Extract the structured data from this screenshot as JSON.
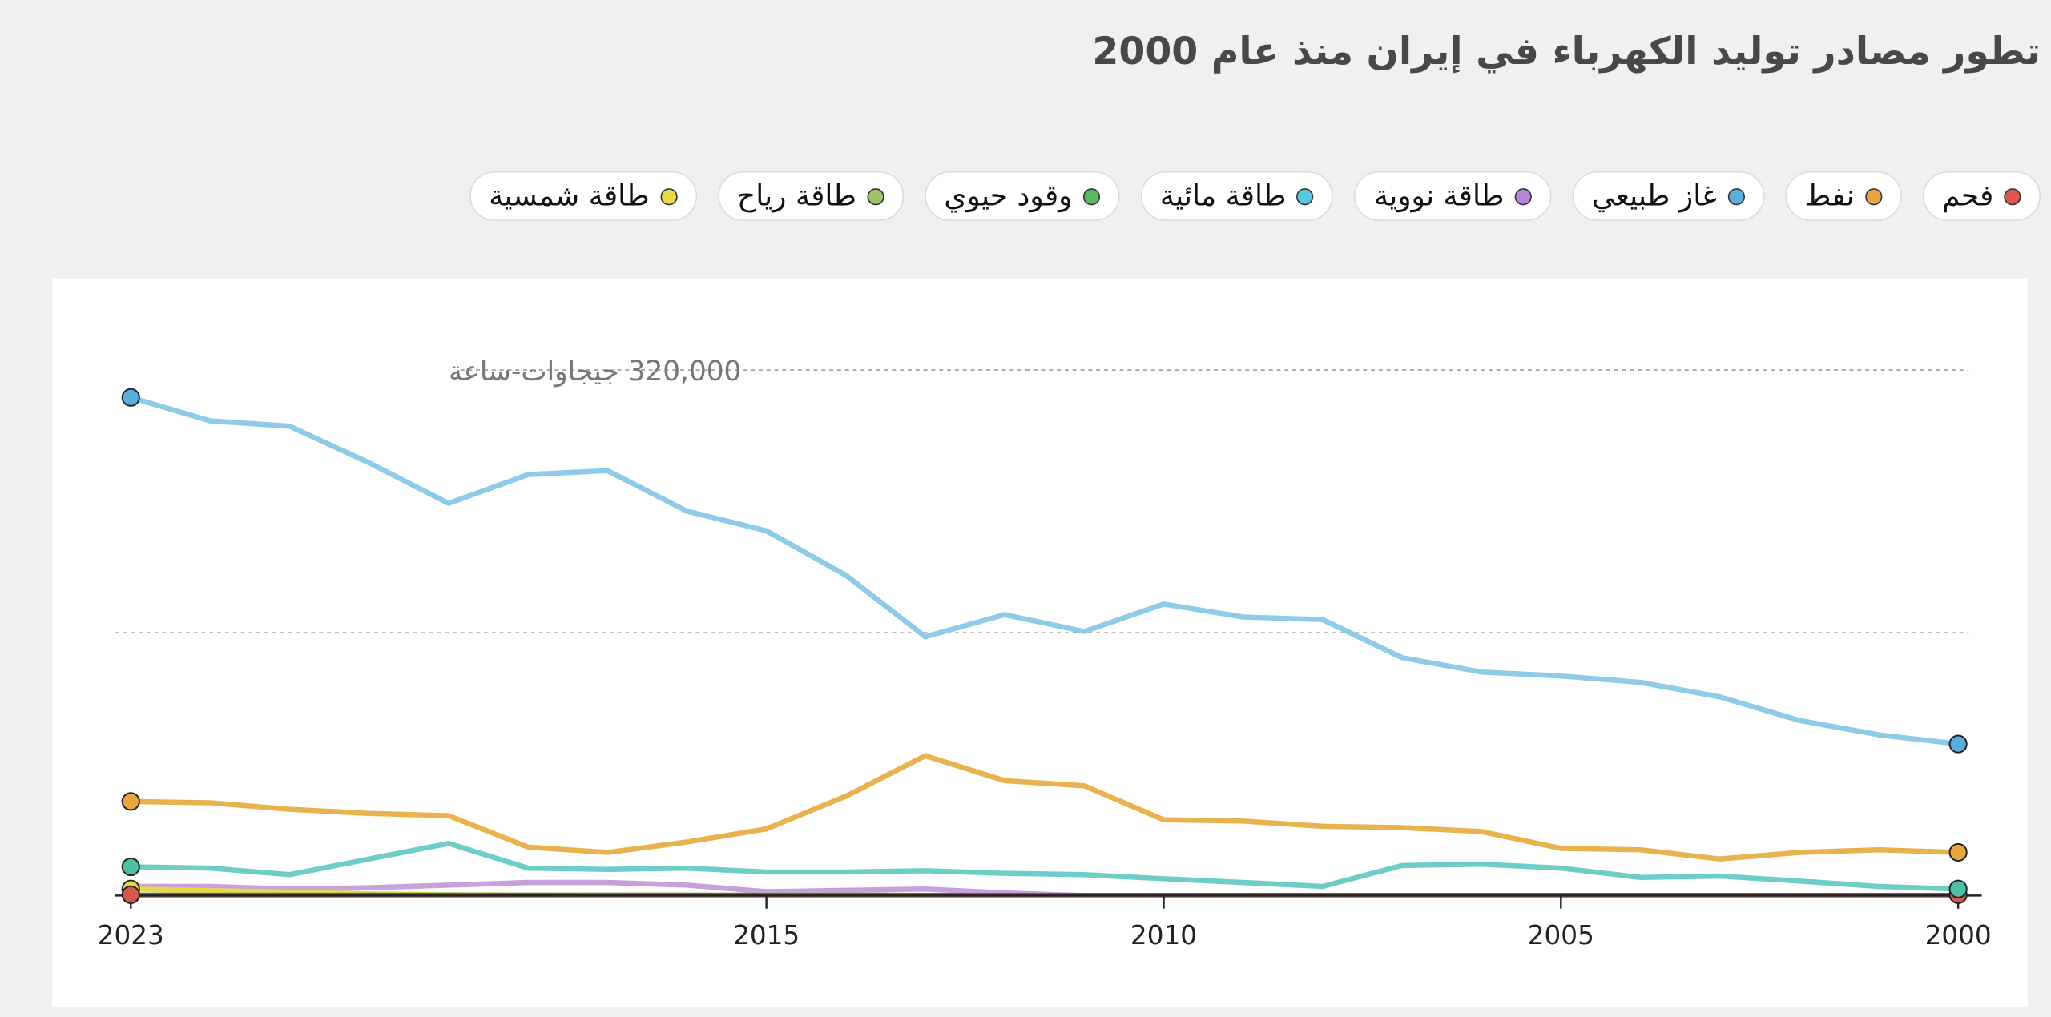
{
  "chart_data": {
    "type": "line",
    "title": "تطور مصادر توليد الكهرباء في إيران منذ عام 2000",
    "x": [
      2023,
      2022,
      2021,
      2020,
      2019,
      2018,
      2017,
      2016,
      2015,
      2014,
      2013,
      2012,
      2011,
      2010,
      2009,
      2008,
      2007,
      2006,
      2005,
      2004,
      2003,
      2002,
      2001,
      2000
    ],
    "x_reversed": true,
    "xticks": [
      "2023",
      "2015",
      "2010",
      "2005",
      "2000"
    ],
    "ylim": [
      0,
      320000
    ],
    "y_gridlines": [
      160000,
      320000
    ],
    "y_label": "320,000 جيجاوات-ساعة",
    "grid": true,
    "legend_placement": "top",
    "series": [
      {
        "name": "فحم",
        "color": "#d9574c",
        "line": "#a64a40",
        "values": [
          500,
          500,
          500,
          500,
          500,
          500,
          500,
          500,
          500,
          500,
          500,
          500,
          500,
          500,
          500,
          500,
          500,
          500,
          500,
          500,
          500,
          500,
          500,
          500
        ]
      },
      {
        "name": "نفط",
        "color": "#e8a640",
        "line": "#e8b24f",
        "values": [
          57300,
          56500,
          52500,
          50100,
          48600,
          29500,
          26300,
          32600,
          40600,
          60500,
          85200,
          70000,
          66900,
          46200,
          45400,
          42200,
          41400,
          39000,
          28700,
          27900,
          22300,
          26300,
          27900,
          26300
        ]
      },
      {
        "name": "غاز طبيعي",
        "color": "#5aaedc",
        "line": "#8ecbe8",
        "values": [
          303300,
          289000,
          285800,
          263500,
          238800,
          256300,
          258700,
          234000,
          222100,
          195000,
          157600,
          171100,
          160800,
          177500,
          169600,
          168000,
          144900,
          136100,
          133700,
          129800,
          121000,
          106700,
          97900,
          92300
        ]
      },
      {
        "name": "طاقة نووية",
        "color": "#b585d6",
        "line": "#c7a0dc",
        "values": [
          5600,
          5600,
          4000,
          4800,
          6400,
          8000,
          8000,
          6400,
          2400,
          3200,
          4000,
          1600,
          0,
          0,
          0,
          0,
          0,
          0,
          0,
          0,
          0,
          0,
          0,
          0
        ]
      },
      {
        "name": "طاقة مائية",
        "color": "#5bc8df",
        "line": "#6fcdc8",
        "dot": "#4fbfa8",
        "values": [
          17500,
          16700,
          12700,
          22300,
          31800,
          16700,
          15900,
          16700,
          14300,
          14300,
          15100,
          13500,
          12700,
          10300,
          8000,
          5600,
          18300,
          19100,
          16700,
          11100,
          11900,
          8800,
          5600,
          4000
        ]
      },
      {
        "name": "وقود حيوي",
        "color": "#5cb85c",
        "line": "#5cb85c",
        "values": [
          0,
          0,
          0,
          0,
          0,
          0,
          0,
          0,
          0,
          0,
          0,
          0,
          0,
          0,
          0,
          0,
          0,
          0,
          0,
          0,
          0,
          0,
          0,
          0
        ]
      },
      {
        "name": "طاقة رياح",
        "color": "#9cc46a",
        "line": "#9cc46a",
        "values": [
          300,
          300,
          300,
          300,
          300,
          300,
          200,
          200,
          200,
          200,
          100,
          100,
          0,
          0,
          0,
          0,
          0,
          0,
          0,
          0,
          0,
          0,
          0,
          0
        ]
      },
      {
        "name": "طاقة شمسية",
        "color": "#e8d84a",
        "line": "#e8d84a",
        "values": [
          4000,
          3000,
          2000,
          1000,
          500,
          200,
          100,
          0,
          0,
          0,
          0,
          0,
          0,
          0,
          0,
          0,
          0,
          0,
          0,
          0,
          0,
          0,
          0,
          0
        ]
      }
    ]
  }
}
